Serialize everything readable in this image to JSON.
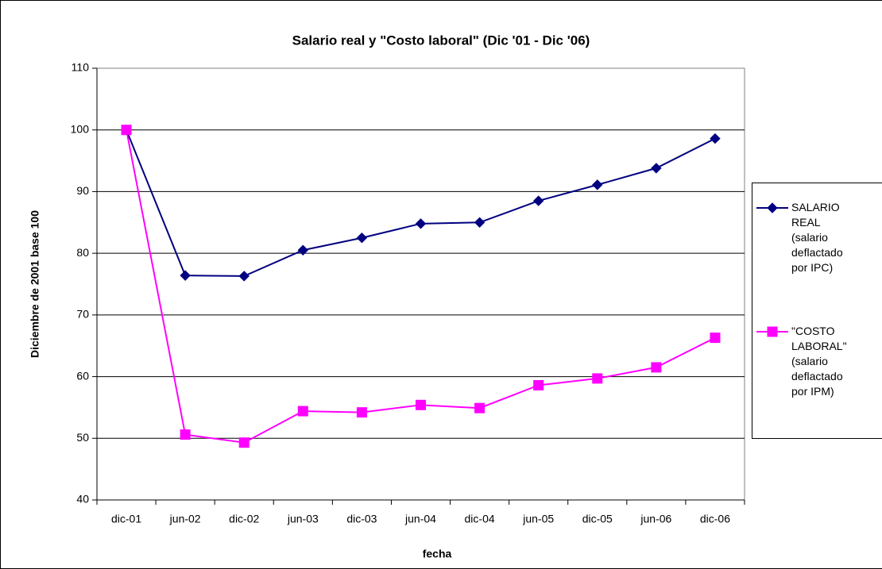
{
  "chart_data": {
    "type": "line",
    "title": "Salario real y \"Costo laboral\" (Dic '01 - Dic '06)",
    "x_label": "fecha",
    "y_label": "Diciembre de 2001 base 100",
    "categories": [
      "dic-01",
      "jun-02",
      "dic-02",
      "jun-03",
      "dic-03",
      "jun-04",
      "dic-04",
      "jun-05",
      "dic-05",
      "jun-06",
      "dic-06"
    ],
    "series": [
      {
        "name": "SALARIO REAL (salario deflactado por IPC)",
        "color": "#000080",
        "marker": "diamond",
        "values": [
          100,
          76.4,
          76.3,
          80.5,
          82.5,
          84.8,
          85.0,
          88.5,
          91.1,
          93.8,
          98.6
        ]
      },
      {
        "name": "\"COSTO LABORAL\" (salario deflactado por IPM)",
        "color": "#ff00ff",
        "marker": "square",
        "values": [
          100,
          50.6,
          49.3,
          54.4,
          54.2,
          55.4,
          54.9,
          58.6,
          59.7,
          61.5,
          66.3
        ]
      }
    ],
    "ylim": [
      40,
      110
    ],
    "yticks": [
      40,
      50,
      60,
      70,
      80,
      90,
      100,
      110
    ],
    "grid": true,
    "legend": "right"
  }
}
